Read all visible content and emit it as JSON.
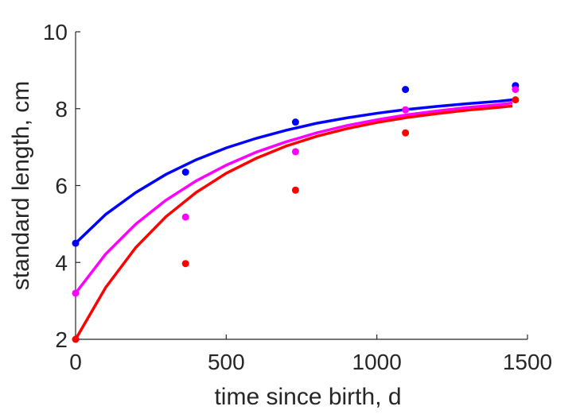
{
  "chart_data": {
    "type": "scatter",
    "xlabel": "time since birth, d",
    "ylabel": "standard length, cm",
    "xlim": [
      0,
      1500
    ],
    "ylim": [
      2,
      10
    ],
    "xticks": [
      0,
      500,
      1000,
      1500
    ],
    "yticks": [
      2,
      4,
      6,
      8,
      10
    ],
    "grid": false,
    "legend": "none",
    "series": [
      {
        "color": "#0000ff",
        "points": {
          "x": [
            0,
            365,
            730,
            1095,
            1460
          ],
          "y": [
            4.5,
            6.35,
            7.65,
            8.5,
            8.6
          ]
        },
        "fit": {
          "x": [
            0,
            100,
            200,
            300,
            400,
            500,
            600,
            700,
            800,
            900,
            1000,
            1100,
            1200,
            1300,
            1400,
            1450
          ],
          "y": [
            4.5,
            5.25,
            5.82,
            6.29,
            6.67,
            6.98,
            7.23,
            7.44,
            7.62,
            7.76,
            7.88,
            7.98,
            8.06,
            8.13,
            8.19,
            8.23
          ]
        }
      },
      {
        "color": "#ff00ff",
        "points": {
          "x": [
            0,
            365,
            730,
            1095,
            1460
          ],
          "y": [
            3.2,
            5.18,
            6.88,
            7.97,
            8.5
          ]
        },
        "fit": {
          "x": [
            0,
            100,
            200,
            300,
            400,
            500,
            600,
            700,
            800,
            900,
            1000,
            1100,
            1200,
            1300,
            1400,
            1450
          ],
          "y": [
            3.2,
            4.22,
            5.0,
            5.62,
            6.12,
            6.53,
            6.87,
            7.14,
            7.37,
            7.56,
            7.71,
            7.84,
            7.94,
            8.03,
            8.1,
            8.15
          ]
        }
      },
      {
        "color": "#ff0000",
        "points": {
          "x": [
            0,
            365,
            730,
            1095,
            1460
          ],
          "y": [
            2.0,
            3.97,
            5.88,
            7.37,
            8.23
          ]
        },
        "fit": {
          "x": [
            0,
            100,
            200,
            300,
            400,
            500,
            600,
            700,
            800,
            900,
            1000,
            1100,
            1200,
            1300,
            1400,
            1450
          ],
          "y": [
            2.0,
            3.35,
            4.39,
            5.19,
            5.82,
            6.32,
            6.71,
            7.03,
            7.28,
            7.48,
            7.64,
            7.77,
            7.87,
            7.96,
            8.03,
            8.07
          ]
        }
      }
    ]
  }
}
